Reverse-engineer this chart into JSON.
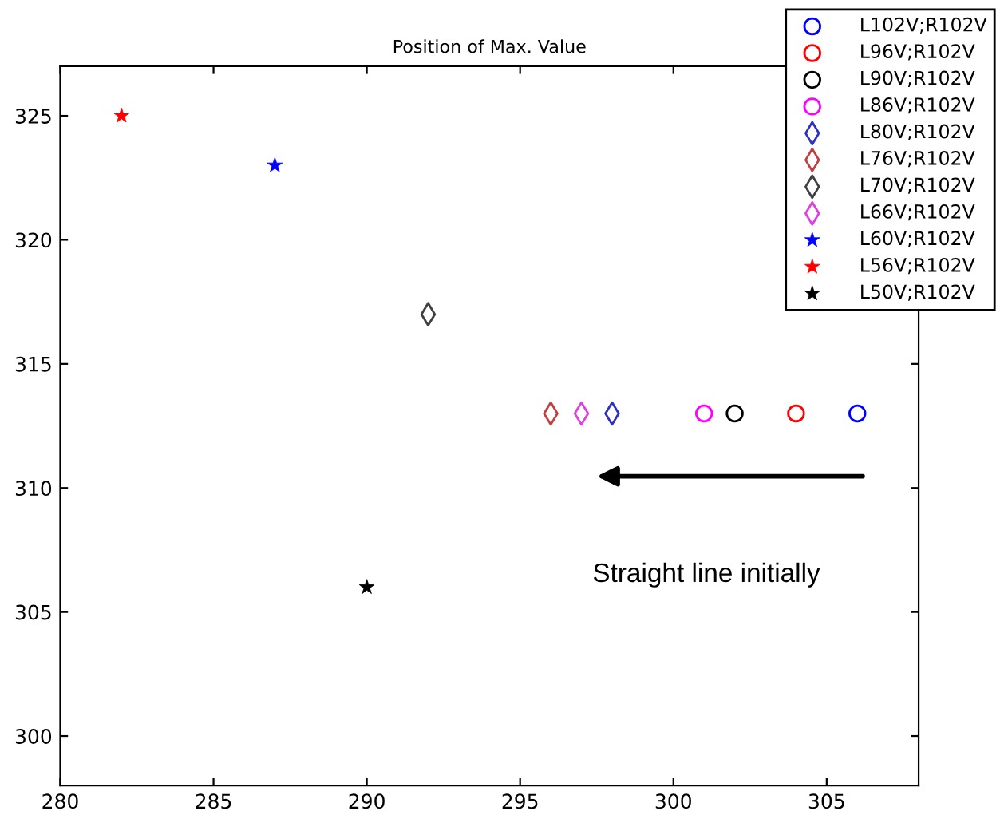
{
  "chart_data": {
    "type": "scatter",
    "title": "Position of Max. Value",
    "series": [
      {
        "name": "L102V;R102V",
        "color": "#0000ff",
        "marker": "circle",
        "x": [
          306
        ],
        "values": [
          313
        ]
      },
      {
        "name": "L96V;R102V",
        "color": "#ff0000",
        "marker": "circle",
        "x": [
          304
        ],
        "values": [
          313
        ]
      },
      {
        "name": "L90V;R102V",
        "color": "#000000",
        "marker": "circle",
        "x": [
          302
        ],
        "values": [
          313
        ]
      },
      {
        "name": "L86V;R102V",
        "color": "#ff00ff",
        "marker": "circle",
        "x": [
          301
        ],
        "values": [
          313
        ]
      },
      {
        "name": "L80V;R102V",
        "color": "#3030c0",
        "marker": "diamond",
        "x": [
          298
        ],
        "values": [
          313
        ]
      },
      {
        "name": "L76V;R102V",
        "color": "#c04040",
        "marker": "diamond",
        "x": [
          296
        ],
        "values": [
          313
        ]
      },
      {
        "name": "L70V;R102V",
        "color": "#404040",
        "marker": "diamond",
        "x": [
          292
        ],
        "values": [
          317
        ]
      },
      {
        "name": "L66V;R102V",
        "color": "#e040e0",
        "marker": "diamond",
        "x": [
          297
        ],
        "values": [
          313
        ]
      },
      {
        "name": "L60V;R102V",
        "color": "#0000ff",
        "marker": "star",
        "x": [
          287
        ],
        "values": [
          323
        ]
      },
      {
        "name": "L56V;R102V",
        "color": "#ff0000",
        "marker": "star",
        "x": [
          282
        ],
        "values": [
          325
        ]
      },
      {
        "name": "L50V;R102V",
        "color": "#000000",
        "marker": "star",
        "x": [
          290
        ],
        "values": [
          306
        ]
      }
    ],
    "xlim": [
      280,
      308
    ],
    "xticks": [
      280,
      285,
      290,
      295,
      300,
      305
    ],
    "ylim": [
      298,
      327
    ],
    "yticks": [
      300,
      305,
      310,
      315,
      320,
      325
    ],
    "annotations": [
      "Straight line initially"
    ],
    "legend": "top right",
    "grid": false
  }
}
